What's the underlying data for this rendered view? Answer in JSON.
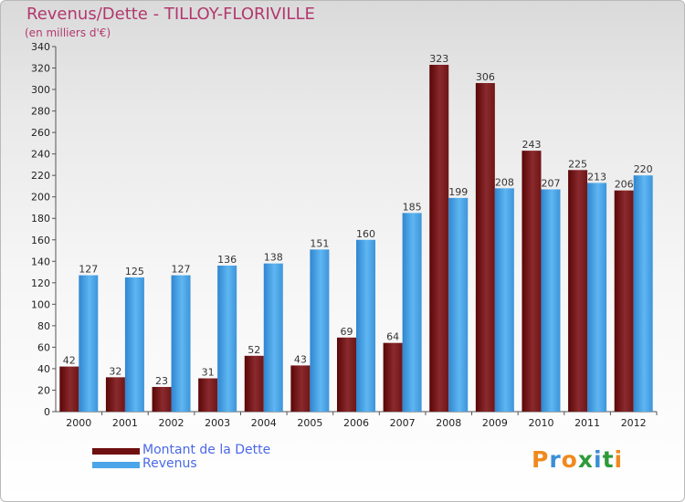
{
  "title": "Revenus/Dette - TILLOY-FLORIVILLE",
  "subtitle": "(en milliers d'€)",
  "legend": {
    "dette_label": "Montant de la Dette",
    "revenus_label": "Revenus"
  },
  "logo": {
    "letters": [
      "P",
      "r",
      "o",
      "x",
      "i",
      "t",
      "i"
    ]
  },
  "colors": {
    "dette": "#6e1010",
    "revenus": "#4aa6e8",
    "title": "#b2386e",
    "legend_text": "#4a68e8"
  },
  "chart_data": {
    "type": "bar",
    "title": "Revenus/Dette - TILLOY-FLORIVILLE",
    "ylabel": "(en milliers d'€)",
    "xlabel": "",
    "ylim": [
      0,
      340
    ],
    "ytick_step": 20,
    "grid": false,
    "legend_position": "bottom-left",
    "categories": [
      "2000",
      "2001",
      "2002",
      "2003",
      "2004",
      "2005",
      "2006",
      "2007",
      "2008",
      "2009",
      "2010",
      "2011",
      "2012"
    ],
    "series": [
      {
        "name": "Montant de la Dette",
        "values": [
          42,
          32,
          23,
          31,
          52,
          43,
          69,
          64,
          323,
          306,
          243,
          225,
          206
        ]
      },
      {
        "name": "Revenus",
        "values": [
          127,
          125,
          127,
          136,
          138,
          151,
          160,
          185,
          199,
          208,
          207,
          213,
          220
        ]
      }
    ]
  }
}
